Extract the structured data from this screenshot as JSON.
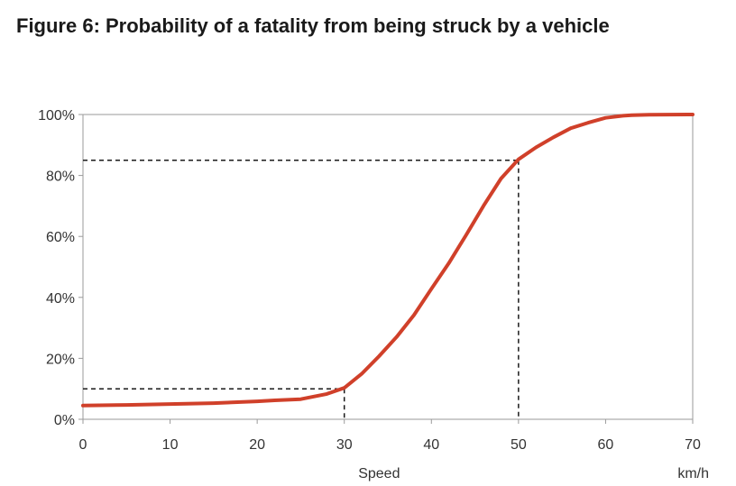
{
  "chart_data": {
    "type": "line",
    "title": "Figure 6: Probability of a fatality from being struck by a vehicle",
    "xlabel": "Speed",
    "xunit": "km/h",
    "ylabel": "",
    "xlim": [
      0,
      70
    ],
    "ylim": [
      0,
      100
    ],
    "xticks": [
      "0",
      "10",
      "20",
      "30",
      "40",
      "50",
      "60",
      "70"
    ],
    "yticks": [
      "0%",
      "20%",
      "40%",
      "60%",
      "80%",
      "100%"
    ],
    "line_color": "#d0402a",
    "series": [
      {
        "x": [
          0,
          5,
          10,
          15,
          20,
          22,
          25,
          28,
          30,
          32,
          34,
          36,
          38,
          40,
          42,
          44,
          46,
          48,
          50,
          52,
          54,
          56,
          58,
          60,
          62,
          63,
          65,
          70
        ],
        "y": [
          4.5,
          4.7,
          5.0,
          5.3,
          5.9,
          6.2,
          6.6,
          8.3,
          10.3,
          14.9,
          20.7,
          27.0,
          34.2,
          42.8,
          51.2,
          60.5,
          70.1,
          79.0,
          85.3,
          89.2,
          92.5,
          95.5,
          97.3,
          98.9,
          99.6,
          99.8,
          99.9,
          100
        ]
      }
    ],
    "reference_lines": [
      {
        "x": 30,
        "y": 10
      },
      {
        "x": 50,
        "y": 85
      }
    ],
    "grid": false
  }
}
